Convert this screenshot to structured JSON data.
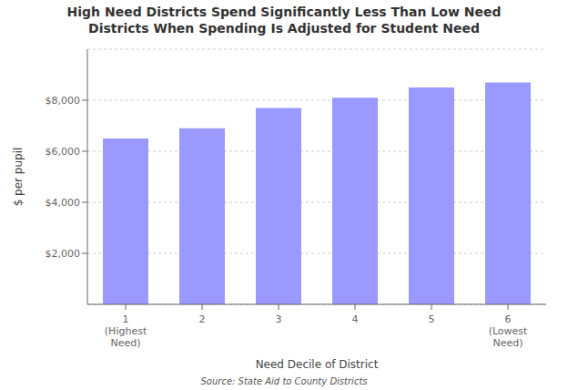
{
  "chart_data": {
    "type": "bar",
    "title": "High Need Districts Spend Significantly Less Than Low Need",
    "subtitle": "Districts When Spending Is Adjusted for Student Need",
    "xlabel": "Need Decile of District",
    "ylabel": "$ per pupil",
    "categories": [
      "1\n(Highest\nNeed)",
      "2",
      "3",
      "4",
      "5",
      "6\n(Lowest\nNeed)"
    ],
    "values": [
      6500,
      6900,
      7700,
      8100,
      8500,
      8700
    ],
    "color": "#9999ff",
    "ylim": [
      0,
      10000
    ],
    "yticks": [
      {
        "value": 2000,
        "label": "$2,000"
      },
      {
        "value": 4000,
        "label": "$4,000"
      },
      {
        "value": 6000,
        "label": "$6,000"
      },
      {
        "value": 8000,
        "label": "$8,000"
      }
    ],
    "grid": true,
    "annotations": [
      "Source: State Aid to County Districts"
    ]
  }
}
